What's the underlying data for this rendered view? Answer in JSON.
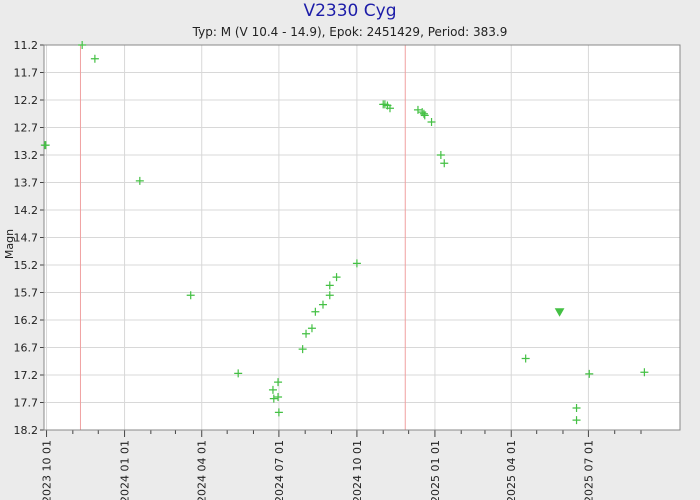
{
  "chart_data": {
    "type": "scatter",
    "title": "V2330 Cyg",
    "subtitle": "Typ: M (V 10.4 - 14.9), Epok: 2451429, Period: 383.9",
    "ylabel": "Magn",
    "y_inverted": true,
    "ylim": [
      11.2,
      18.2
    ],
    "yticks": [
      11.2,
      11.7,
      12.2,
      12.7,
      13.2,
      13.7,
      14.2,
      14.7,
      15.2,
      15.7,
      16.2,
      16.7,
      17.2,
      17.7,
      18.2
    ],
    "ytick_labels": [
      "11.2",
      "11.7",
      "12.2",
      "12.7",
      "13.2",
      "13.7",
      "14.2",
      "14.7",
      "15.2",
      "15.7",
      "16.2",
      "16.7",
      "17.2",
      "17.7",
      "18.2"
    ],
    "xlim": [
      "2023-09-28",
      "2025-10-17"
    ],
    "xticks": [
      "2023-10-01",
      "2024-01-01",
      "2024-04-01",
      "2024-07-01",
      "2024-10-01",
      "2025-01-01",
      "2025-04-01",
      "2025-07-01"
    ],
    "xtick_labels": [
      "2023 10 01",
      "2024 01 01",
      "2024 04 01",
      "2024 07 01",
      "2024 10 01",
      "2025 01 01",
      "2025 04 01",
      "2025 07 01"
    ],
    "x_minor_ticks": [
      "2023-11-01",
      "2023-12-01",
      "2024-02-01",
      "2024-03-01",
      "2024-05-01",
      "2024-06-01",
      "2024-08-01",
      "2024-09-01",
      "2024-11-01",
      "2024-12-01",
      "2025-02-01",
      "2025-03-01",
      "2025-05-01",
      "2025-06-01",
      "2025-08-01",
      "2025-09-01"
    ],
    "maxima_lines": [
      "2023-11-10",
      "2024-11-27"
    ],
    "grid": true,
    "colors": {
      "points": "#44c044",
      "maxima_line": "#f0a0a0",
      "plot_bg": "#ffffff",
      "grid": "#d8d8d8",
      "page_bg": "#ebebeb",
      "title": "#1c1ca8"
    },
    "series": [
      {
        "marker": "plus",
        "points": [
          {
            "x": "2023-09-29",
            "y": 13.02
          },
          {
            "x": "2023-09-30",
            "y": 13.02
          },
          {
            "x": "2023-11-12",
            "y": 11.2
          },
          {
            "x": "2023-11-27",
            "y": 11.45
          },
          {
            "x": "2024-01-19",
            "y": 13.67
          },
          {
            "x": "2024-03-19",
            "y": 15.75
          },
          {
            "x": "2024-05-14",
            "y": 17.17
          },
          {
            "x": "2024-06-24",
            "y": 17.47
          },
          {
            "x": "2024-06-25",
            "y": 17.63
          },
          {
            "x": "2024-06-30",
            "y": 17.33
          },
          {
            "x": "2024-06-30",
            "y": 17.6
          },
          {
            "x": "2024-07-01",
            "y": 17.88
          },
          {
            "x": "2024-07-29",
            "y": 16.73
          },
          {
            "x": "2024-08-02",
            "y": 16.45
          },
          {
            "x": "2024-08-09",
            "y": 16.35
          },
          {
            "x": "2024-08-13",
            "y": 16.05
          },
          {
            "x": "2024-08-22",
            "y": 15.92
          },
          {
            "x": "2024-08-30",
            "y": 15.75
          },
          {
            "x": "2024-08-30",
            "y": 15.57
          },
          {
            "x": "2024-09-07",
            "y": 15.42
          },
          {
            "x": "2024-10-01",
            "y": 15.17
          },
          {
            "x": "2024-11-01",
            "y": 12.28
          },
          {
            "x": "2024-11-03",
            "y": 12.28
          },
          {
            "x": "2024-11-06",
            "y": 12.3
          },
          {
            "x": "2024-11-09",
            "y": 12.35
          },
          {
            "x": "2024-12-12",
            "y": 12.38
          },
          {
            "x": "2024-12-17",
            "y": 12.42
          },
          {
            "x": "2024-12-19",
            "y": 12.45
          },
          {
            "x": "2024-12-20",
            "y": 12.48
          },
          {
            "x": "2024-12-28",
            "y": 12.6
          },
          {
            "x": "2025-01-08",
            "y": 13.2
          },
          {
            "x": "2025-01-12",
            "y": 13.35
          },
          {
            "x": "2025-04-18",
            "y": 16.9
          },
          {
            "x": "2025-06-17",
            "y": 17.8
          },
          {
            "x": "2025-06-17",
            "y": 18.02
          },
          {
            "x": "2025-07-02",
            "y": 17.18
          },
          {
            "x": "2025-09-05",
            "y": 17.15
          }
        ]
      },
      {
        "marker": "triangle-down",
        "points": [
          {
            "x": "2025-05-28",
            "y": 16.05
          }
        ]
      }
    ]
  }
}
